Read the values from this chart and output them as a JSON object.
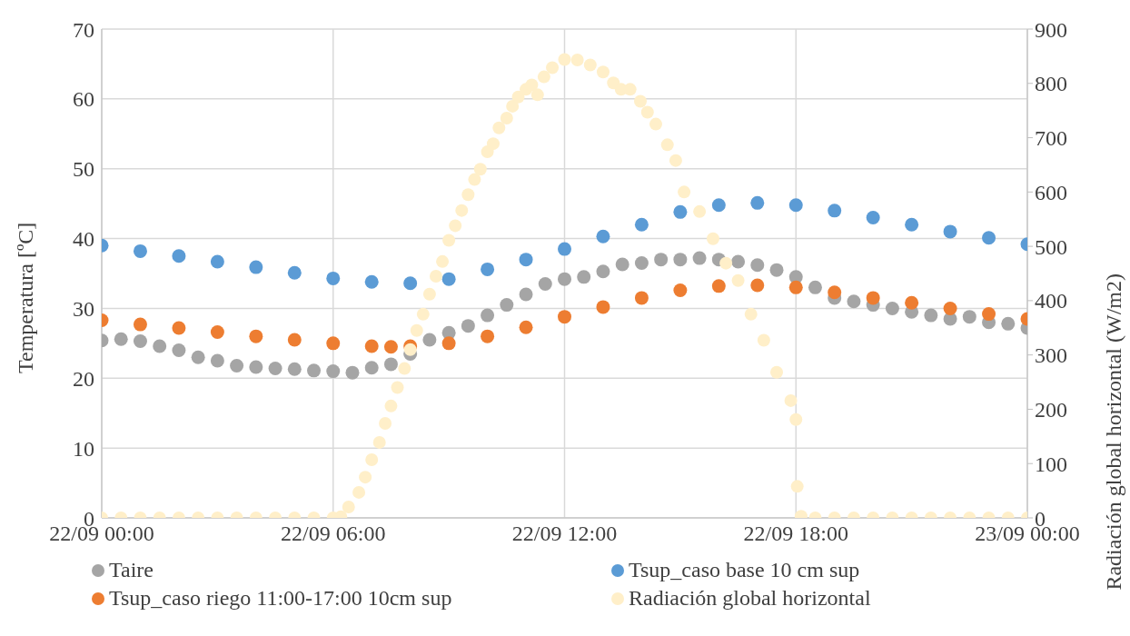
{
  "chart_data": {
    "type": "scatter",
    "ylabel": "Temperatura [ºC]",
    "y2label": "Radiación global horizontal (W/m2)",
    "xlim": [
      "--09-22T00:00",
      "--09-23T00:00"
    ],
    "xticks": [
      {
        "value": "--09-22T00:00",
        "label": "22/09 00:00"
      },
      {
        "value": "--09-22T06:00",
        "label": "22/09 06:00"
      },
      {
        "value": "--09-22T12:00",
        "label": "22/09 12:00"
      },
      {
        "value": "--09-22T18:00",
        "label": "22/09 18:00"
      },
      {
        "value": "--09-23T00:00",
        "label": "23/09 00:00"
      }
    ],
    "ylim": [
      0,
      70
    ],
    "yticks": [
      0,
      10,
      20,
      30,
      40,
      50,
      60,
      70
    ],
    "y2lim": [
      0,
      900
    ],
    "y2ticks": [
      0,
      100,
      200,
      300,
      400,
      500,
      600,
      700,
      800,
      900
    ],
    "grid": true,
    "legend": "bottom",
    "marker": "circle",
    "series": [
      {
        "name": "Taire",
        "color": "#a5a5a5",
        "x": [
          "--09-22T00:00",
          "--09-22T00:30",
          "--09-22T01:00",
          "--09-22T01:30",
          "--09-22T02:00",
          "--09-22T02:30",
          "--09-22T03:00",
          "--09-22T03:30",
          "--09-22T04:00",
          "--09-22T04:30",
          "--09-22T05:00",
          "--09-22T05:30",
          "--09-22T06:00",
          "--09-22T06:30",
          "--09-22T07:00",
          "--09-22T07:30",
          "--09-22T08:00",
          "--09-22T08:30",
          "--09-22T09:00",
          "--09-22T09:30",
          "--09-22T10:00",
          "--09-22T10:30",
          "--09-22T11:00",
          "--09-22T11:30",
          "--09-22T12:00",
          "--09-22T12:30",
          "--09-22T13:00",
          "--09-22T13:30",
          "--09-22T14:00",
          "--09-22T14:30",
          "--09-22T15:00",
          "--09-22T15:30",
          "--09-22T16:00",
          "--09-22T16:30",
          "--09-22T17:00",
          "--09-22T17:30",
          "--09-22T18:00",
          "--09-22T18:30",
          "--09-22T19:00",
          "--09-22T19:30",
          "--09-22T20:00",
          "--09-22T20:30",
          "--09-22T21:00",
          "--09-22T21:30",
          "--09-22T22:00",
          "--09-22T22:30",
          "--09-22T23:00",
          "--09-22T23:30",
          "--09-23T00:00"
        ],
        "values": [
          25.4,
          25.6,
          25.3,
          24.6,
          24,
          23,
          22.5,
          21.8,
          21.6,
          21.4,
          21.3,
          21.1,
          21,
          20.8,
          21.5,
          22,
          23.5,
          25.5,
          26.5,
          27.5,
          29,
          30.5,
          32,
          33.5,
          34.2,
          34.5,
          35.3,
          36.3,
          36.5,
          37,
          37,
          37.2,
          37,
          36.7,
          36.2,
          35.5,
          34.5,
          33,
          31.5,
          31,
          30.5,
          30,
          29.5,
          29,
          28.5,
          28.8,
          28,
          27.8,
          27.2
        ]
      },
      {
        "name": "Tsup_caso base 10 cm sup",
        "color": "#5b9bd5",
        "x": [
          "--09-22T00:00",
          "--09-22T01:00",
          "--09-22T02:00",
          "--09-22T03:00",
          "--09-22T04:00",
          "--09-22T05:00",
          "--09-22T06:00",
          "--09-22T07:00",
          "--09-22T08:00",
          "--09-22T09:00",
          "--09-22T10:00",
          "--09-22T11:00",
          "--09-22T12:00",
          "--09-22T13:00",
          "--09-22T14:00",
          "--09-22T15:00",
          "--09-22T16:00",
          "--09-22T17:00",
          "--09-22T18:00",
          "--09-22T19:00",
          "--09-22T20:00",
          "--09-22T21:00",
          "--09-22T22:00",
          "--09-22T23:00",
          "--09-23T00:00"
        ],
        "values": [
          39,
          38.2,
          37.5,
          36.7,
          35.9,
          35.1,
          34.3,
          33.8,
          33.6,
          34.2,
          35.6,
          37,
          38.5,
          40.3,
          42,
          43.8,
          44.8,
          45.1,
          44.8,
          44,
          43,
          42,
          41,
          40.1,
          39.2
        ]
      },
      {
        "name": "Tsup_caso riego 11:00-17:00 10cm sup",
        "color": "#ed7d31",
        "x": [
          "--09-22T00:00",
          "--09-22T01:00",
          "--09-22T02:00",
          "--09-22T03:00",
          "--09-22T04:00",
          "--09-22T05:00",
          "--09-22T06:00",
          "--09-22T07:00",
          "--09-22T07:30",
          "--09-22T08:00",
          "--09-22T09:00",
          "--09-22T10:00",
          "--09-22T11:00",
          "--09-22T12:00",
          "--09-22T13:00",
          "--09-22T14:00",
          "--09-22T15:00",
          "--09-22T16:00",
          "--09-22T17:00",
          "--09-22T18:00",
          "--09-22T19:00",
          "--09-22T20:00",
          "--09-22T21:00",
          "--09-22T22:00",
          "--09-22T23:00",
          "--09-23T00:00"
        ],
        "values": [
          28.3,
          27.7,
          27.2,
          26.6,
          26,
          25.5,
          25,
          24.6,
          24.5,
          24.6,
          25,
          26,
          27.3,
          28.8,
          30.2,
          31.5,
          32.6,
          33.2,
          33.3,
          33,
          32.3,
          31.5,
          30.8,
          30,
          29.2,
          28.5
        ]
      },
      {
        "name": "Radiación global horizontal",
        "color": "#ffefc9",
        "axis": "y2",
        "x": [
          "--09-22T00:00",
          "--09-22T00:30",
          "--09-22T01:00",
          "--09-22T01:30",
          "--09-22T02:00",
          "--09-22T02:30",
          "--09-22T03:00",
          "--09-22T03:30",
          "--09-22T04:00",
          "--09-22T04:30",
          "--09-22T05:00",
          "--09-22T05:30",
          "--09-22T06:00",
          "--09-22T06:12",
          "--09-22T06:24",
          "--09-22T06:40",
          "--09-22T06:50",
          "--09-22T07:00",
          "--09-22T07:12",
          "--09-22T07:21",
          "--09-22T07:30",
          "--09-22T07:40",
          "--09-22T07:51",
          "--09-22T08:00",
          "--09-22T08:10",
          "--09-22T08:20",
          "--09-22T08:30",
          "--09-22T08:40",
          "--09-22T08:50",
          "--09-22T09:00",
          "--09-22T09:10",
          "--09-22T09:20",
          "--09-22T09:30",
          "--09-22T09:40",
          "--09-22T09:49",
          "--09-22T10:00",
          "--09-22T10:09",
          "--09-22T10:18",
          "--09-22T10:30",
          "--09-22T10:39",
          "--09-22T10:48",
          "--09-22T11:00",
          "--09-22T11:09",
          "--09-22T11:18",
          "--09-22T11:28",
          "--09-22T11:41",
          "--09-22T12:00",
          "--09-22T12:20",
          "--09-22T12:40",
          "--09-22T13:00",
          "--09-22T13:16",
          "--09-22T13:28",
          "--09-22T13:42",
          "--09-22T13:58",
          "--09-22T14:09",
          "--09-22T14:22",
          "--09-22T14:40",
          "--09-22T14:53",
          "--09-22T15:06",
          "--09-22T15:30",
          "--09-22T15:51",
          "--09-22T16:11",
          "--09-22T16:30",
          "--09-22T16:50",
          "--09-22T17:10",
          "--09-22T17:30",
          "--09-22T17:52",
          "--09-22T18:00",
          "--09-22T18:02",
          "--09-22T18:08",
          "--09-22T18:30",
          "--09-22T19:00",
          "--09-22T19:30",
          "--09-22T20:00",
          "--09-22T20:30",
          "--09-22T21:00",
          "--09-22T21:30",
          "--09-22T22:00",
          "--09-22T22:30",
          "--09-22T23:00",
          "--09-22T23:30",
          "--09-23T00:00"
        ],
        "values": [
          0,
          0,
          0,
          0,
          0,
          0,
          0,
          0,
          0,
          0,
          0,
          0,
          0,
          2,
          20,
          47,
          75,
          107,
          139,
          174,
          206,
          240,
          275,
          310,
          345,
          375,
          412,
          445,
          472,
          511,
          538,
          566,
          595,
          623,
          642,
          674,
          689,
          718,
          736,
          758,
          775,
          789,
          797,
          779,
          812,
          829,
          844,
          843,
          834,
          821,
          801,
          789,
          789,
          767,
          747,
          725,
          687,
          658,
          600,
          564,
          514,
          469,
          437,
          375,
          327,
          268,
          216,
          181,
          58,
          3,
          0,
          0,
          0,
          0,
          0,
          0,
          0,
          0,
          0,
          0,
          0,
          0
        ]
      }
    ]
  }
}
